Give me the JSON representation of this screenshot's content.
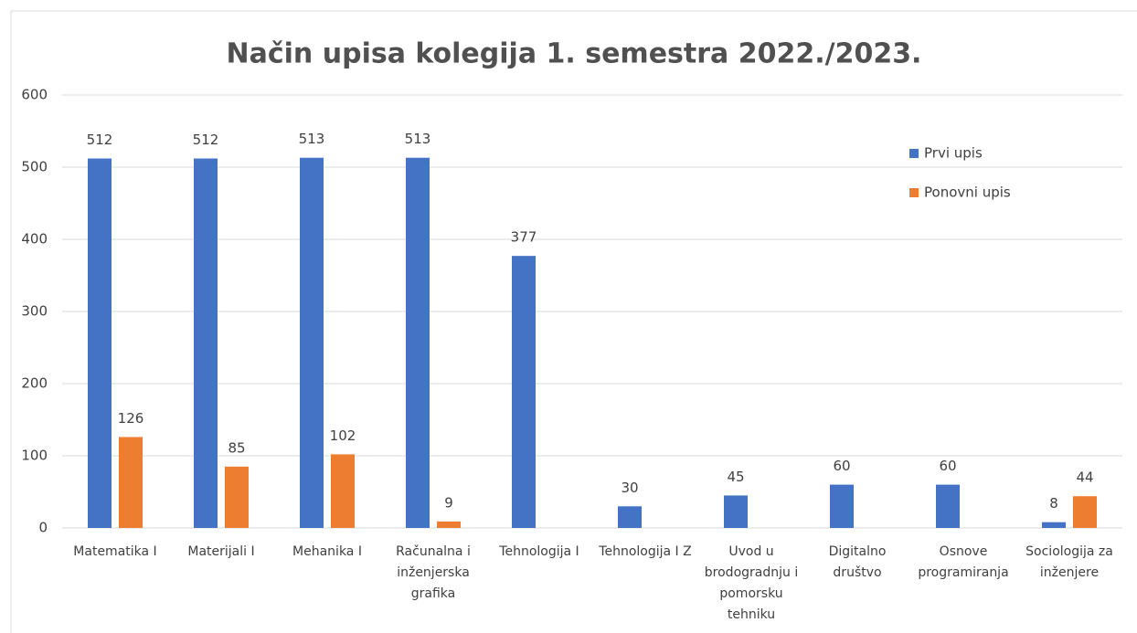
{
  "chart_data": {
    "type": "bar",
    "title": "Način upisa kolegija 1. semestra 2022./2023.",
    "categories": [
      "Matematika I",
      "Materijali I",
      "Mehanika I",
      "Računalna i inženjerska grafika",
      "Tehnologija I",
      "Tehnologija I Z",
      "Uvod u brodogradnju i pomorsku tehniku",
      "Digitalno društvo",
      "Osnove programiranja",
      "Sociologija za inženjere"
    ],
    "series": [
      {
        "name": "Prvi upis",
        "color": "#4472c4",
        "values": [
          512,
          512,
          513,
          513,
          377,
          30,
          45,
          60,
          60,
          8
        ]
      },
      {
        "name": "Ponovni upis",
        "color": "#ed7d31",
        "values": [
          126,
          85,
          102,
          9,
          null,
          null,
          null,
          null,
          null,
          44
        ]
      }
    ],
    "ylim": [
      0,
      600
    ],
    "yticks": [
      0,
      100,
      200,
      300,
      400,
      500,
      600
    ],
    "grid": true,
    "legend": "upper right"
  }
}
